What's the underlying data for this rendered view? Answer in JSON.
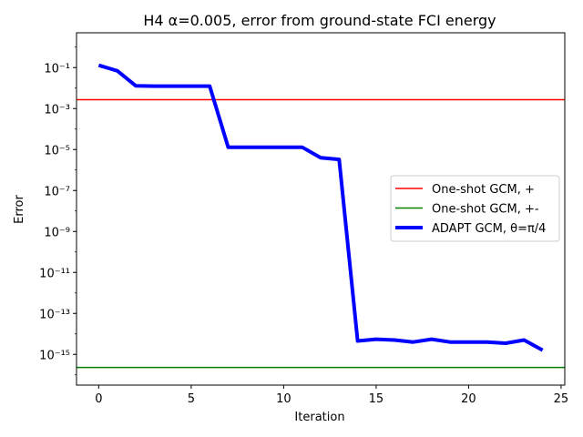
{
  "chart_data": {
    "type": "line",
    "title": "H4 α=0.005, error from ground-state FCI energy",
    "xlabel": "Iteration",
    "ylabel": "Error",
    "yscale": "log",
    "xlim": [
      -1.2,
      25.2
    ],
    "ylim_log10": [
      -16.5,
      0.7
    ],
    "xticks": [
      0,
      5,
      10,
      15,
      20,
      25
    ],
    "yticks": [
      {
        "exp": -1,
        "label": "10⁻¹"
      },
      {
        "exp": -3,
        "label": "10⁻³"
      },
      {
        "exp": -5,
        "label": "10⁻⁵"
      },
      {
        "exp": -7,
        "label": "10⁻⁷"
      },
      {
        "exp": -9,
        "label": "10⁻⁹"
      },
      {
        "exp": -11,
        "label": "10⁻¹¹"
      },
      {
        "exp": -13,
        "label": "10⁻¹³"
      },
      {
        "exp": -15,
        "label": "10⁻¹⁵"
      }
    ],
    "hlines": [
      {
        "name": "One-shot GCM, +",
        "value": 0.0027,
        "color": "#ff0000"
      },
      {
        "name": "One-shot GCM, +-",
        "value": 2.3e-16,
        "color": "#008000"
      }
    ],
    "series": [
      {
        "name": "ADAPT GCM, θ=π/4",
        "color": "#0000ff",
        "x": [
          0,
          1,
          2,
          3,
          4,
          5,
          6,
          7,
          8,
          9,
          10,
          11,
          12,
          13,
          14,
          15,
          16,
          17,
          18,
          19,
          20,
          21,
          22,
          23,
          24
        ],
        "y": [
          0.13,
          0.07,
          0.013,
          0.0125,
          0.0125,
          0.0125,
          0.0125,
          1.3e-05,
          1.3e-05,
          1.3e-05,
          1.3e-05,
          1.3e-05,
          4e-06,
          3.3e-06,
          4.5e-15,
          5.5e-15,
          5e-15,
          4e-15,
          5.5e-15,
          4e-15,
          4e-15,
          4e-15,
          3.5e-15,
          5e-15,
          1.6e-15
        ]
      }
    ],
    "legend_loc": "center-right"
  }
}
